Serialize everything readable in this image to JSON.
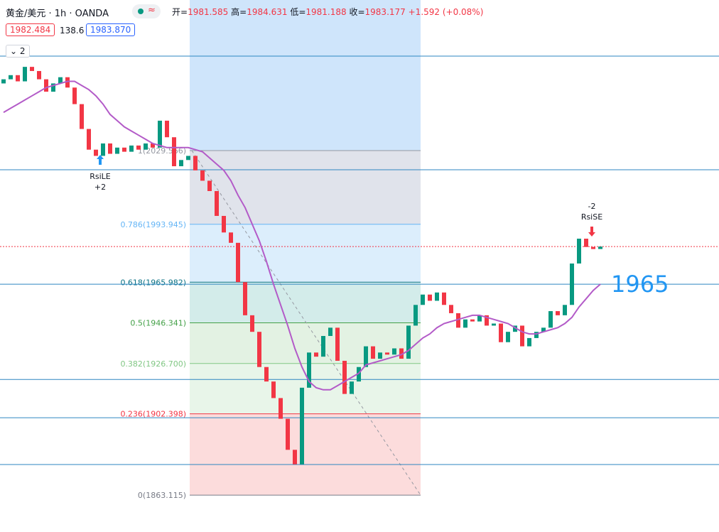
{
  "chart_data": {
    "type": "candlestick",
    "header": {
      "symbol": "黄金/美元 · 1h · OANDA",
      "open_label": "开=",
      "open": "1981.585",
      "high_label": "高=",
      "high": "1984.631",
      "low_label": "低=",
      "low": "1981.188",
      "close_label": "收=",
      "close": "1983.177",
      "change": "+1.592 (+0.08%)",
      "bid": "1982.484",
      "spread": "138.6",
      "ask": "1983.870",
      "collapse": "2"
    },
    "ylim": [
      1845.3,
      2102.3
    ],
    "up_color": "#089981",
    "down_color": "#f23645",
    "ma_color": "#b35bc8",
    "open": [
      2062,
      2064,
      2066,
      2063,
      2070,
      2068,
      2064,
      2058,
      2062,
      2065,
      2060,
      2052,
      2040,
      2030,
      2027,
      2033,
      2028,
      2031,
      2029,
      2032,
      2030,
      2033,
      2031,
      2044,
      2036,
      2022,
      2025,
      2027,
      2020,
      2015,
      2010,
      1998,
      1990,
      1985,
      1966,
      1950,
      1942,
      1925,
      1918,
      1910,
      1900,
      1885,
      1878,
      1915,
      1932,
      1930,
      1940,
      1944,
      1928,
      1912,
      1918,
      1925,
      1935,
      1929,
      1932,
      1931,
      1934,
      1929,
      1945,
      1955,
      1960,
      1957,
      1961,
      1955,
      1951,
      1944,
      1948,
      1947,
      1950,
      1945,
      1946,
      1937,
      1942,
      1945,
      1935,
      1939,
      1942,
      1944,
      1952,
      1950,
      1955,
      1975,
      1987,
      1983,
      1982
    ],
    "close": [
      2064,
      2066,
      2063,
      2070,
      2068,
      2064,
      2058,
      2062,
      2065,
      2060,
      2052,
      2040,
      2030,
      2027,
      2033,
      2028,
      2031,
      2029,
      2032,
      2030,
      2033,
      2031,
      2044,
      2036,
      2022,
      2025,
      2027,
      2020,
      2015,
      2010,
      1998,
      1990,
      1985,
      1966,
      1950,
      1942,
      1925,
      1918,
      1910,
      1900,
      1885,
      1878,
      1915,
      1932,
      1930,
      1940,
      1944,
      1928,
      1912,
      1918,
      1925,
      1935,
      1929,
      1932,
      1931,
      1934,
      1929,
      1945,
      1955,
      1960,
      1957,
      1961,
      1955,
      1951,
      1944,
      1948,
      1947,
      1950,
      1945,
      1946,
      1937,
      1942,
      1945,
      1935,
      1939,
      1942,
      1944,
      1952,
      1950,
      1955,
      1975,
      1987,
      1983,
      1982,
      1983.177
    ],
    "ma": [
      2048,
      2050,
      2052,
      2054,
      2056,
      2058,
      2060,
      2061,
      2062,
      2063,
      2063,
      2061,
      2059,
      2056,
      2052,
      2047,
      2044,
      2041,
      2039,
      2037,
      2035,
      2033,
      2032,
      2031,
      2031,
      2031,
      2031,
      2030,
      2029,
      2026,
      2023,
      2020,
      2015,
      2008,
      2002,
      1994,
      1986,
      1976,
      1965,
      1955,
      1945,
      1934,
      1925,
      1918,
      1915,
      1914,
      1914,
      1916,
      1918,
      1920,
      1922,
      1926,
      1927,
      1928,
      1929,
      1930,
      1931,
      1933,
      1936,
      1939,
      1941,
      1944,
      1946,
      1947,
      1948,
      1949,
      1950,
      1950,
      1949,
      1948,
      1947,
      1946,
      1944,
      1942,
      1941,
      1941,
      1942,
      1943,
      1944,
      1946,
      1949,
      1954,
      1958,
      1962,
      1965
    ],
    "fib_levels": [
      {
        "label": "1(2029.566)",
        "value": 2029.566,
        "color": "#9598a1",
        "fill": "#e0e3eb"
      },
      {
        "label": "0.786(1993.945)",
        "value": 1993.945,
        "color": "#64b5f6",
        "fill": "#dceefc"
      },
      {
        "label": "0.618(1965.982)",
        "value": 1965.982,
        "color": "#0b7285",
        "fill": "#d3ecea"
      },
      {
        "label": "0.5(1946.341)",
        "value": 1946.341,
        "color": "#43a047",
        "fill": "#e3f2e3"
      },
      {
        "label": "0.382(1926.700)",
        "value": 1926.7,
        "color": "#81c784",
        "fill": "#e8f5e9"
      },
      {
        "label": "0.236(1902.398)",
        "value": 1902.398,
        "color": "#f23645",
        "fill": "#fcdcdc"
      },
      {
        "label": "0(1863.115)",
        "value": 1863.115,
        "color": "#787b86",
        "fill": null
      }
    ],
    "fib_top_fill": "#cfe5fb",
    "levels": [
      2075.2,
      2020.3,
      1965,
      1919,
      1900.5,
      1877.9
    ],
    "level_label": "1965",
    "price_line": 1983.177,
    "annotations": [
      {
        "text": "RsiLE",
        "sub": "+2"
      },
      {
        "text": "-2",
        "sub": "RsiSE"
      }
    ]
  }
}
